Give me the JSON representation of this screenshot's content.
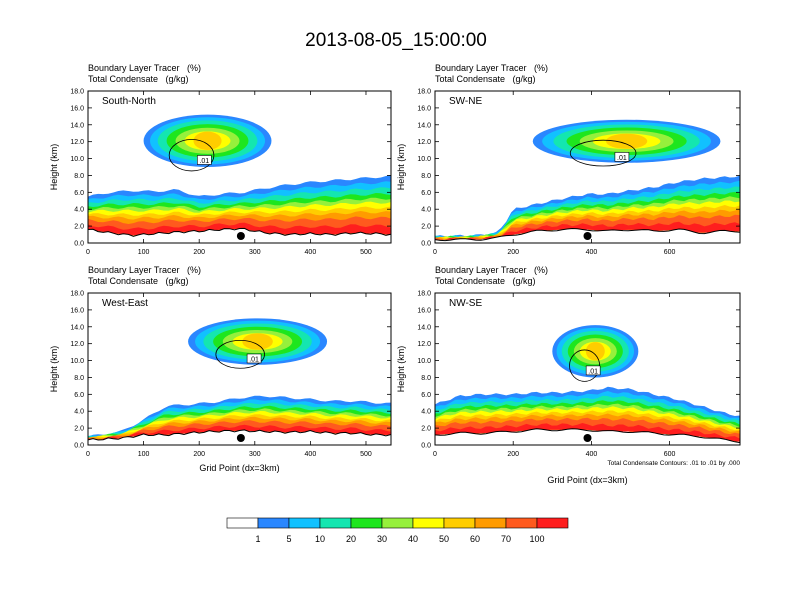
{
  "figure": {
    "title": "2013-08-05_15:00:00",
    "field_label_1": "Boundary Layer Tracer",
    "field_unit_1": "(%)",
    "field_label_2": "Total Condensate",
    "field_unit_2": "(g/kg)",
    "ylabel": "Height (km)",
    "xlabel": "Grid Point (dx=3km)",
    "contour_info": "Total Condensate Contours: .01 to .01 by .000",
    "contour_label": ".01"
  },
  "colorbar": {
    "labels": [
      "1",
      "5",
      "10",
      "20",
      "30",
      "40",
      "50",
      "60",
      "70",
      "100"
    ],
    "colors": [
      "#ffffff",
      "#2a87ff",
      "#11c1ff",
      "#14e6b0",
      "#1ee61e",
      "#96f03c",
      "#ffff00",
      "#ffcd00",
      "#ff9b00",
      "#ff5a1e",
      "#ff1e1e"
    ]
  },
  "chart_data": [
    {
      "type": "heatmap",
      "panel": "South-North",
      "x_ticks": [
        0,
        100,
        200,
        300,
        400,
        500
      ],
      "xlim": [
        0,
        545
      ],
      "y_ticks": [
        "0.0",
        "2.0",
        "4.0",
        "6.0",
        "8.0",
        "10.0",
        "12.0",
        "14.0",
        "16.0",
        "18.0"
      ],
      "ylim": [
        0,
        18
      ],
      "marker_x": 275,
      "terrain_km": [
        [
          0,
          1.6
        ],
        [
          40,
          1.2
        ],
        [
          80,
          0.9
        ],
        [
          120,
          1.1
        ],
        [
          160,
          1.3
        ],
        [
          200,
          1.4
        ],
        [
          240,
          1.6
        ],
        [
          275,
          1.7
        ],
        [
          320,
          1.2
        ],
        [
          360,
          1.0
        ],
        [
          400,
          1.1
        ],
        [
          440,
          1.0
        ],
        [
          480,
          1.2
        ],
        [
          520,
          1.1
        ],
        [
          545,
          1.0
        ]
      ],
      "pbl_top_km": [
        [
          0,
          5.5
        ],
        [
          40,
          6.0
        ],
        [
          80,
          6.2
        ],
        [
          120,
          6.1
        ],
        [
          160,
          6.3
        ],
        [
          200,
          5.5
        ],
        [
          240,
          5.8
        ],
        [
          280,
          6.0
        ],
        [
          320,
          6.5
        ],
        [
          360,
          6.9
        ],
        [
          400,
          7.2
        ],
        [
          440,
          7.4
        ],
        [
          480,
          7.6
        ],
        [
          520,
          7.8
        ],
        [
          545,
          7.9
        ]
      ],
      "upper_plume": {
        "x": [
          100,
          330
        ],
        "bottom_km": 9.0,
        "top_km": 15.2
      }
    },
    {
      "type": "heatmap",
      "panel": "SW-NE",
      "x_ticks": [
        0,
        200,
        400,
        600
      ],
      "xlim": [
        0,
        780
      ],
      "y_ticks": [
        "0.0",
        "2.0",
        "4.0",
        "6.0",
        "8.0",
        "10.0",
        "12.0",
        "14.0",
        "16.0",
        "18.0"
      ],
      "ylim": [
        0,
        18
      ],
      "marker_x": 390,
      "terrain_km": [
        [
          0,
          0.4
        ],
        [
          100,
          0.4
        ],
        [
          160,
          0.6
        ],
        [
          200,
          1.0
        ],
        [
          260,
          1.4
        ],
        [
          320,
          1.6
        ],
        [
          390,
          1.6
        ],
        [
          440,
          1.4
        ],
        [
          500,
          1.6
        ],
        [
          560,
          1.4
        ],
        [
          620,
          1.6
        ],
        [
          680,
          1.2
        ],
        [
          740,
          1.4
        ],
        [
          780,
          1.4
        ]
      ],
      "pbl_top_km": [
        [
          0,
          0.8
        ],
        [
          100,
          0.9
        ],
        [
          160,
          1.2
        ],
        [
          180,
          2.5
        ],
        [
          200,
          4.0
        ],
        [
          260,
          4.6
        ],
        [
          320,
          5.2
        ],
        [
          390,
          5.8
        ],
        [
          440,
          5.8
        ],
        [
          500,
          6.2
        ],
        [
          560,
          6.6
        ],
        [
          620,
          7.2
        ],
        [
          680,
          7.6
        ],
        [
          740,
          7.8
        ],
        [
          780,
          7.9
        ]
      ],
      "upper_plume": {
        "x": [
          250,
          730
        ],
        "bottom_km": 9.5,
        "top_km": 14.6
      }
    },
    {
      "type": "heatmap",
      "panel": "West-East",
      "x_ticks": [
        0,
        100,
        200,
        300,
        400,
        500
      ],
      "xlim": [
        0,
        545
      ],
      "y_ticks": [
        "0.0",
        "2.0",
        "4.0",
        "6.0",
        "8.0",
        "10.0",
        "12.0",
        "14.0",
        "16.0",
        "18.0"
      ],
      "ylim": [
        0,
        18
      ],
      "marker_x": 275,
      "terrain_km": [
        [
          0,
          0.6
        ],
        [
          60,
          0.8
        ],
        [
          100,
          1.2
        ],
        [
          140,
          1.2
        ],
        [
          180,
          1.4
        ],
        [
          220,
          1.6
        ],
        [
          275,
          1.7
        ],
        [
          320,
          1.6
        ],
        [
          360,
          1.5
        ],
        [
          400,
          1.6
        ],
        [
          440,
          1.4
        ],
        [
          480,
          1.4
        ],
        [
          520,
          1.2
        ],
        [
          545,
          1.2
        ]
      ],
      "pbl_top_km": [
        [
          0,
          1.0
        ],
        [
          60,
          1.6
        ],
        [
          100,
          3.0
        ],
        [
          140,
          4.6
        ],
        [
          180,
          4.8
        ],
        [
          220,
          5.0
        ],
        [
          275,
          5.6
        ],
        [
          320,
          5.8
        ],
        [
          360,
          5.6
        ],
        [
          400,
          5.4
        ],
        [
          440,
          5.2
        ],
        [
          480,
          5.2
        ],
        [
          520,
          5.0
        ],
        [
          545,
          4.9
        ]
      ],
      "upper_plume": {
        "x": [
          180,
          430
        ],
        "bottom_km": 9.5,
        "top_km": 15.0
      }
    },
    {
      "type": "heatmap",
      "panel": "NW-SE",
      "x_ticks": [
        0,
        200,
        400,
        600
      ],
      "xlim": [
        0,
        780
      ],
      "y_ticks": [
        "0.0",
        "2.0",
        "4.0",
        "6.0",
        "8.0",
        "10.0",
        "12.0",
        "14.0",
        "16.0",
        "18.0"
      ],
      "ylim": [
        0,
        18
      ],
      "marker_x": 390,
      "terrain_km": [
        [
          0,
          1.2
        ],
        [
          60,
          1.4
        ],
        [
          120,
          1.4
        ],
        [
          200,
          1.6
        ],
        [
          260,
          1.8
        ],
        [
          320,
          1.8
        ],
        [
          390,
          1.8
        ],
        [
          440,
          1.6
        ],
        [
          500,
          1.6
        ],
        [
          560,
          1.4
        ],
        [
          620,
          1.2
        ],
        [
          680,
          1.0
        ],
        [
          740,
          0.6
        ],
        [
          780,
          0.4
        ]
      ],
      "pbl_top_km": [
        [
          0,
          4.8
        ],
        [
          60,
          5.8
        ],
        [
          120,
          6.0
        ],
        [
          200,
          6.0
        ],
        [
          260,
          6.2
        ],
        [
          320,
          6.2
        ],
        [
          390,
          6.4
        ],
        [
          440,
          6.8
        ],
        [
          500,
          6.6
        ],
        [
          560,
          6.0
        ],
        [
          620,
          5.4
        ],
        [
          680,
          4.6
        ],
        [
          740,
          3.8
        ],
        [
          780,
          3.4
        ]
      ],
      "upper_plume": {
        "x": [
          300,
          520
        ],
        "bottom_km": 8.0,
        "top_km": 14.2
      }
    }
  ]
}
